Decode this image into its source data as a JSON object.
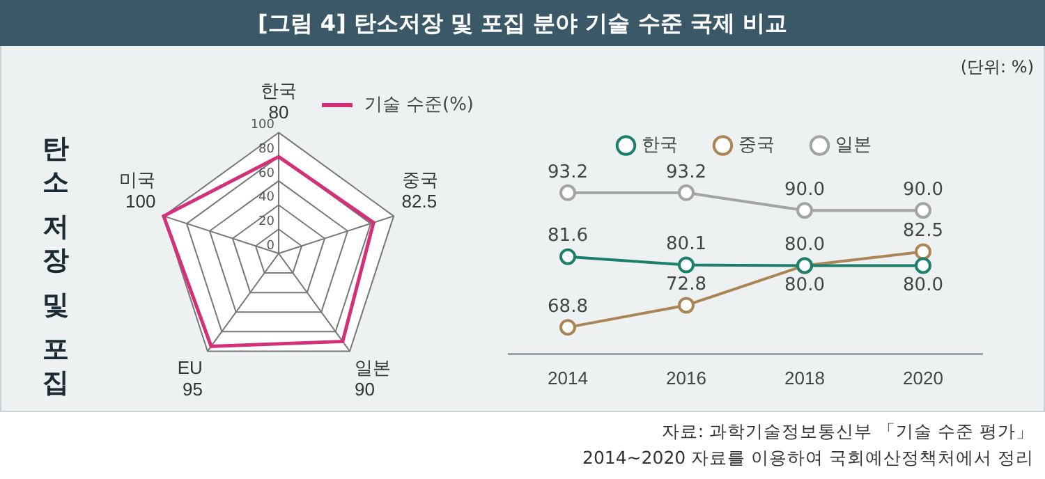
{
  "chart_data": [
    {
      "type": "radar",
      "title": "[그림 4] 탄소저장 및 포집 분야 기술 수준 국제 비교",
      "annotations": [
        "탄소 저장 및 포집"
      ],
      "categories": [
        "한국",
        "중국",
        "일본",
        "EU",
        "미국"
      ],
      "series": [
        {
          "name": "기술 수준(%)",
          "color": "#d4307a",
          "values": [
            80,
            82.5,
            90,
            95,
            100
          ]
        }
      ],
      "ylim": [
        0,
        100
      ],
      "yticks": [
        0,
        20,
        40,
        60,
        80,
        100
      ],
      "grid": true,
      "data_labels": true,
      "legend": "top right",
      "marker": "none"
    },
    {
      "type": "line",
      "annotations": [
        "(단위: %)",
        "자료: 과학기술정보통신부 「기술 수준 평가」 2014~2020 자료를 이용하여 국회예산정책처에서 정리"
      ],
      "categories": [
        "2014",
        "2016",
        "2018",
        "2020"
      ],
      "series": [
        {
          "name": "한국",
          "color": "#1b7f6b",
          "values": [
            81.6,
            80.1,
            80.0,
            80.0
          ],
          "value_labels": [
            "81.6",
            "80.1",
            "80.0",
            "80.0"
          ]
        },
        {
          "name": "중국",
          "color": "#ab8555",
          "values": [
            68.8,
            72.8,
            80.0,
            82.5
          ],
          "value_labels": [
            "68.8",
            "72.8",
            "80.0",
            "82.5"
          ]
        },
        {
          "name": "일본",
          "color": "#a3a3a3",
          "values": [
            93.2,
            93.2,
            90.0,
            90.0
          ],
          "value_labels": [
            "93.2",
            "93.2",
            "90.0",
            "90.0"
          ]
        }
      ],
      "tick_labels": "x",
      "grid": false,
      "legend": "top",
      "marker": "circle",
      "line_style": "solid"
    }
  ]
}
